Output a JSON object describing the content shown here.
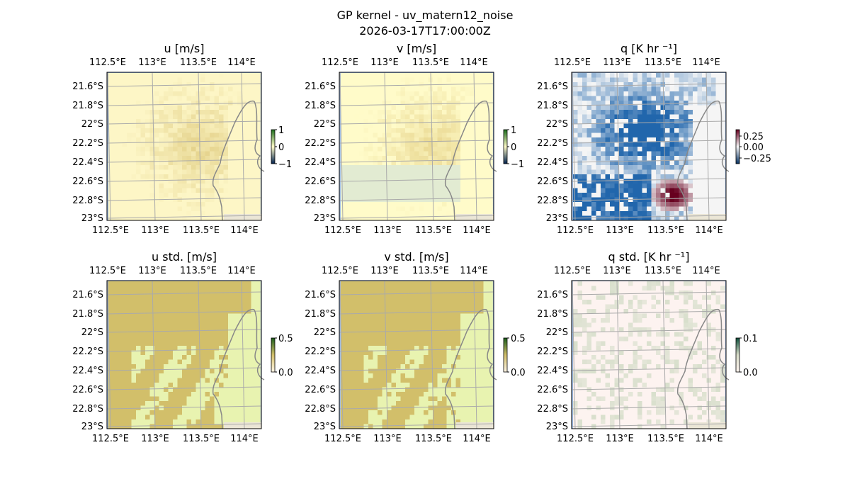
{
  "figure": {
    "title": "GP kernel - uv_matern12_noise",
    "timestamp": "2026-03-17T17:00:00Z"
  },
  "axes": {
    "lon_ticks": [
      "112.5°E",
      "113°E",
      "113.5°E",
      "114°E"
    ],
    "lat_ticks": [
      "21.6°S",
      "21.8°S",
      "22°S",
      "22.2°S",
      "22.4°S",
      "22.6°S",
      "22.8°S",
      "23°S"
    ]
  },
  "panels": [
    {
      "title": "u [m/s]",
      "colorbar_ticks": [
        "1",
        "0",
        "−1"
      ],
      "colormap": [
        "#00204c",
        "#fffbc8",
        "#1a6b1a"
      ],
      "base": "#fdf6c6",
      "dark": "#e2cf86"
    },
    {
      "title": "v [m/s]",
      "colorbar_ticks": [
        "1",
        "0",
        "−1"
      ],
      "colormap": [
        "#00204c",
        "#fffbc8",
        "#1a6b1a"
      ],
      "base": "#fffbc9",
      "dark": "#e8d68f"
    },
    {
      "title": "q [K hr ⁻¹]",
      "colorbar_ticks": [
        "0.25",
        "0.00",
        "−0.25"
      ],
      "colormap": [
        "#053061",
        "#f7f7f7",
        "#67001f"
      ],
      "base": "#f5f5f5",
      "dark": "#2166ac"
    },
    {
      "title": "u std. [m/s]",
      "colorbar_ticks": [
        "0.5",
        "0.0"
      ],
      "colormap": [
        "#fff6e6",
        "#d2bf6a",
        "#1a5c1a"
      ],
      "base": "#e8f3b0",
      "dark": "#d2bf6a"
    },
    {
      "title": "v std. [m/s]",
      "colorbar_ticks": [
        "0.5",
        "0.0"
      ],
      "colormap": [
        "#fff6e6",
        "#d2bf6a",
        "#1a5c1a"
      ],
      "base": "#e8f3b0",
      "dark": "#d2bf6a"
    },
    {
      "title": "q std. [K hr ⁻¹]",
      "colorbar_ticks": [
        "0.1",
        "0.0"
      ],
      "colormap": [
        "#fff5f0",
        "#d8dcc8",
        "#0d4d3a"
      ],
      "base": "#fdf3f0",
      "dark": "#d8dfcc"
    }
  ]
}
